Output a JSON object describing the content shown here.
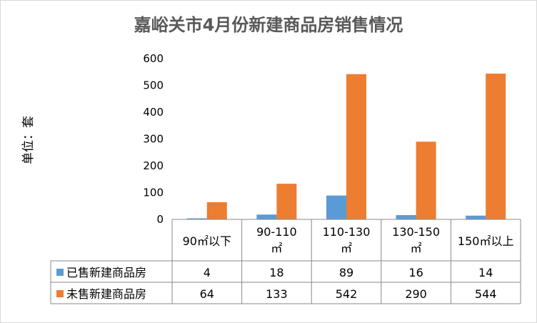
{
  "chart_data": {
    "type": "bar",
    "title": "嘉峪关市4月份新建商品房销售情况",
    "ylabel": "单位：套",
    "xlabel": "",
    "categories": [
      "90㎡以下",
      "90-110㎡",
      "110-130㎡",
      "130-150㎡",
      "150㎡以上"
    ],
    "series": [
      {
        "name": "已售新建商品房",
        "values": [
          4,
          18,
          89,
          16,
          14
        ],
        "color": "#5b9bd5"
      },
      {
        "name": "未售新建商品房",
        "values": [
          64,
          133,
          542,
          290,
          544
        ],
        "color": "#ed7d31"
      }
    ],
    "ylim": [
      0,
      600
    ],
    "yticks": [
      0,
      100,
      200,
      300,
      400,
      500,
      600
    ],
    "grid": false,
    "legend": "data-table"
  }
}
